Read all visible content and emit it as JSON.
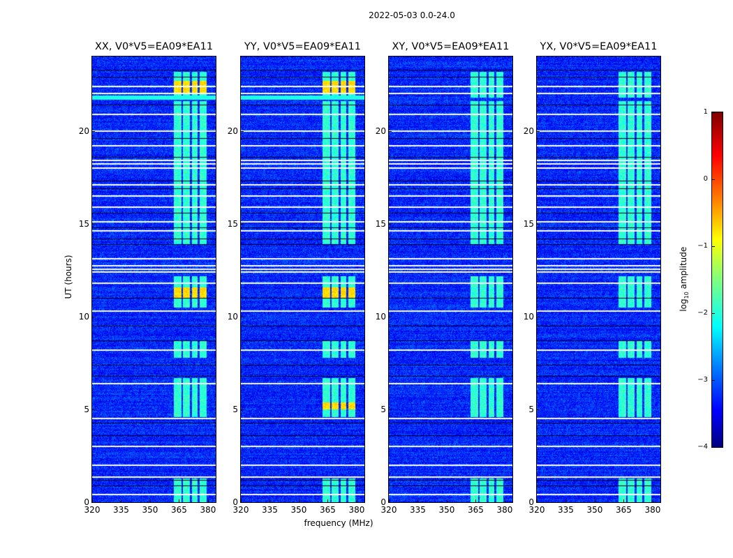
{
  "chart_data": {
    "type": "heatmap",
    "title": "2022-05-03 0.0-24.0",
    "xlabel": "frequency (MHz)",
    "ylabel": "UT (hours)",
    "xlim": [
      320,
      384
    ],
    "ylim": [
      0,
      24
    ],
    "xticks": [
      "320",
      "335",
      "350",
      "365",
      "380"
    ],
    "xtick_values": [
      320,
      335,
      350,
      365,
      380
    ],
    "yticks": [
      "0",
      "5",
      "10",
      "15",
      "20"
    ],
    "ytick_values": [
      0,
      5,
      10,
      15,
      20
    ],
    "panels": [
      {
        "title": "XX, V0*V5=EA09*EA11"
      },
      {
        "title": "YY, V0*V5=EA09*EA11"
      },
      {
        "title": "XY, V0*V5=EA09*EA11"
      },
      {
        "title": "YX, V0*V5=EA09*EA11"
      }
    ],
    "colorbar": {
      "label": "log10 amplitude",
      "label_main": "log",
      "label_sub": "10",
      "label_rest": " amplitude",
      "clim": [
        -4,
        1
      ],
      "ticks": [
        "1",
        "0",
        "−1",
        "−2",
        "−3",
        "−4"
      ],
      "tick_values": [
        1,
        0,
        -1,
        -2,
        -3,
        -4
      ],
      "colormap": "jet"
    },
    "background_level": -3.2,
    "rfi_bands_mhz": [
      [
        362,
        366
      ],
      [
        367,
        370.5
      ],
      [
        371.5,
        374.5
      ],
      [
        375.5,
        379
      ]
    ],
    "rfi_active_hours": [
      [
        0,
        1.3
      ],
      [
        4.6,
        6.7
      ],
      [
        7.8,
        8.7
      ],
      [
        10.5,
        12.2
      ],
      [
        13.9,
        16.7
      ],
      [
        16.7,
        21.6
      ],
      [
        21.8,
        23.2
      ]
    ],
    "flagged_hours": [
      0.4,
      1.35,
      2.0,
      3.0,
      4.5,
      6.4,
      8.2,
      10.3,
      11.8,
      12.4,
      12.55,
      12.75,
      13.1,
      14.6,
      15.1,
      15.9,
      16.5,
      17.1,
      18.0,
      18.2,
      18.4,
      19.2,
      20.0,
      20.9,
      22.0,
      22.4
    ],
    "dark_hours": [
      0.9,
      1.2,
      3.6,
      4.3,
      6.8,
      7.4,
      8.7,
      9.5,
      11.0,
      13.9,
      14.2,
      14.8,
      15.6,
      16.9,
      17.3,
      18.6,
      19.6,
      21.4,
      22.9,
      23.3
    ]
  }
}
